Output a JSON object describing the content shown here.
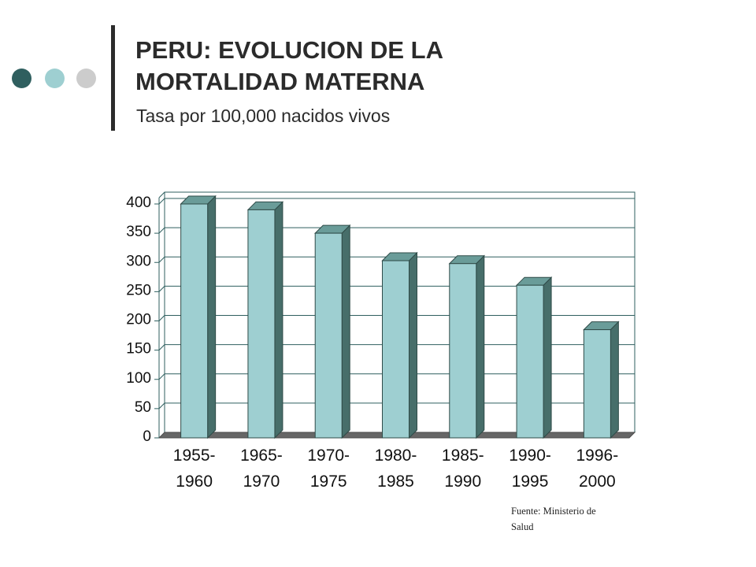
{
  "header": {
    "title_line1": "PERU: EVOLUCION DE LA",
    "title_line2": "MORTALIDAD MATERNA",
    "subtitle": "Tasa por 100,000 nacidos vivos"
  },
  "decoration": {
    "dot_colors": [
      "#2f5f5f",
      "#9ecfd1",
      "#cccccc"
    ],
    "rule_color": "#2b2b2b"
  },
  "chart_data": {
    "type": "bar",
    "categories": [
      [
        "1955-",
        "1960"
      ],
      [
        "1965-",
        "1970"
      ],
      [
        "1970-",
        "1975"
      ],
      [
        "1980-",
        "1985"
      ],
      [
        "1985-",
        "1990"
      ],
      [
        "1990-",
        "1995"
      ],
      [
        "1996-",
        "2000"
      ]
    ],
    "values": [
      400,
      390,
      350,
      303,
      298,
      261,
      185
    ],
    "ylim": [
      0,
      400
    ],
    "yticks": [
      0,
      50,
      100,
      150,
      200,
      250,
      300,
      350,
      400
    ],
    "grid": true,
    "legend": false,
    "style": "3d",
    "colors": {
      "bar_front": "#9ecfd1",
      "bar_side": "#476e6a",
      "bar_top": "#6a9c99",
      "floor": "#666666",
      "grid": "#2f5f5f"
    },
    "title": "",
    "xlabel": "",
    "ylabel": ""
  },
  "footer": {
    "source_line1": "Fuente: Ministerio de",
    "source_line2": "Salud"
  }
}
